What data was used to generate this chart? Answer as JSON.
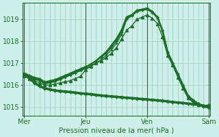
{
  "bg_color": "#cff0e8",
  "grid_color": "#99ccbb",
  "line_color": "#1a6e2a",
  "xlabel": "Pression niveau de la mer( hPa )",
  "xlabel_color": "#1a6e2a",
  "xtick_labels": [
    "Mer",
    "Jeu",
    "Ven",
    "Sam"
  ],
  "xtick_positions": [
    0,
    36,
    72,
    108
  ],
  "yticks": [
    1015,
    1016,
    1017,
    1018,
    1019
  ],
  "ylim": [
    1014.6,
    1019.75
  ],
  "xlim": [
    -1,
    109
  ],
  "lines": [
    {
      "x": [
        0,
        3,
        6,
        9,
        12,
        15,
        18,
        21,
        24,
        27,
        30,
        33,
        36,
        39,
        42,
        45,
        48,
        51,
        54,
        57,
        60,
        63,
        66,
        69,
        72,
        75,
        78,
        81,
        84,
        87,
        90,
        93,
        96,
        99,
        102,
        105,
        108
      ],
      "y": [
        1016.5,
        1016.4,
        1016.3,
        1016.25,
        1016.1,
        1016.15,
        1016.2,
        1016.3,
        1016.4,
        1016.5,
        1016.6,
        1016.7,
        1016.8,
        1016.95,
        1017.1,
        1017.3,
        1017.5,
        1017.8,
        1018.1,
        1018.5,
        1019.1,
        1019.2,
        1019.4,
        1019.45,
        1019.5,
        1019.35,
        1019.1,
        1018.5,
        1017.5,
        1017.0,
        1016.5,
        1016.0,
        1015.5,
        1015.3,
        1015.15,
        1015.05,
        1015.0
      ],
      "lw": 1.8,
      "marker": "+",
      "ms": 3.5
    },
    {
      "x": [
        0,
        3,
        6,
        9,
        12,
        15,
        18,
        21,
        24,
        27,
        30,
        33,
        36,
        39,
        42,
        45,
        48,
        51,
        54,
        57,
        60,
        63,
        66,
        69,
        72,
        75,
        78,
        81,
        84,
        87,
        90,
        93,
        96,
        99,
        102,
        105,
        108
      ],
      "y": [
        1016.45,
        1016.35,
        1016.25,
        1016.2,
        1016.05,
        1016.1,
        1016.15,
        1016.25,
        1016.35,
        1016.45,
        1016.55,
        1016.65,
        1016.75,
        1016.85,
        1017.0,
        1017.15,
        1017.35,
        1017.6,
        1017.9,
        1018.3,
        1019.0,
        1019.15,
        1019.35,
        1019.4,
        1019.45,
        1019.3,
        1019.05,
        1018.45,
        1017.4,
        1016.95,
        1016.45,
        1015.95,
        1015.45,
        1015.25,
        1015.1,
        1015.0,
        1014.95
      ],
      "lw": 1.0,
      "marker": "+",
      "ms": 3.0
    },
    {
      "x": [
        0,
        3,
        6,
        9,
        12,
        15,
        18,
        21,
        24,
        27,
        30,
        33,
        36,
        39,
        42,
        45,
        48,
        51,
        54,
        57,
        60,
        63,
        66,
        69,
        72,
        75,
        78,
        81,
        84,
        87,
        90,
        93,
        96,
        99,
        102,
        105,
        108
      ],
      "y": [
        1016.55,
        1016.45,
        1016.35,
        1016.3,
        1016.15,
        1016.2,
        1016.25,
        1016.35,
        1016.45,
        1016.55,
        1016.65,
        1016.75,
        1016.85,
        1016.95,
        1017.1,
        1017.25,
        1017.45,
        1017.7,
        1018.0,
        1018.4,
        1019.05,
        1019.2,
        1019.4,
        1019.45,
        1019.5,
        1019.35,
        1019.1,
        1018.5,
        1017.5,
        1017.0,
        1016.5,
        1016.0,
        1015.5,
        1015.3,
        1015.15,
        1015.05,
        1015.0
      ],
      "lw": 1.0,
      "marker": "+",
      "ms": 3.0
    },
    {
      "x": [
        0,
        3,
        6,
        9,
        12,
        15,
        18,
        21,
        24,
        27,
        30,
        33,
        36,
        39,
        42,
        45,
        48,
        51,
        54,
        57,
        60,
        63,
        66,
        69,
        72,
        75,
        78,
        81,
        84,
        87,
        90,
        93,
        96,
        99,
        102,
        105,
        108
      ],
      "y": [
        1016.4,
        1016.3,
        1016.2,
        1016.1,
        1016.0,
        1016.0,
        1016.05,
        1016.1,
        1016.15,
        1016.2,
        1016.3,
        1016.4,
        1016.7,
        1016.85,
        1017.0,
        1017.1,
        1017.25,
        1017.45,
        1017.7,
        1018.1,
        1018.5,
        1018.7,
        1019.0,
        1019.1,
        1019.2,
        1019.05,
        1018.8,
        1018.2,
        1017.35,
        1016.9,
        1016.35,
        1015.85,
        1015.4,
        1015.2,
        1015.1,
        1015.05,
        1015.1
      ],
      "lw": 1.0,
      "marker": "^",
      "ms": 3.0
    },
    {
      "x": [
        0,
        3,
        6,
        9,
        12,
        15,
        18,
        21,
        24,
        27,
        30,
        33,
        36,
        39,
        42,
        45,
        48,
        51,
        54,
        57,
        60,
        63,
        66,
        69,
        72,
        75,
        78,
        81,
        84,
        87,
        90,
        93,
        96,
        99,
        102,
        105,
        108
      ],
      "y": [
        1016.5,
        1016.3,
        1016.1,
        1015.95,
        1015.85,
        1015.8,
        1015.75,
        1015.72,
        1015.7,
        1015.68,
        1015.65,
        1015.62,
        1015.6,
        1015.58,
        1015.55,
        1015.52,
        1015.5,
        1015.48,
        1015.46,
        1015.44,
        1015.42,
        1015.4,
        1015.38,
        1015.36,
        1015.34,
        1015.32,
        1015.3,
        1015.28,
        1015.25,
        1015.22,
        1015.2,
        1015.18,
        1015.15,
        1015.12,
        1015.1,
        1015.05,
        1015.0
      ],
      "lw": 2.5,
      "marker": "+",
      "ms": 3.0
    },
    {
      "x": [
        0,
        3,
        6,
        9,
        12,
        15,
        18,
        21,
        24,
        27,
        30,
        33,
        36,
        39,
        42,
        45,
        48,
        51,
        54,
        57,
        60,
        63,
        66,
        69,
        72,
        75,
        78,
        81,
        84,
        87,
        90,
        93,
        96,
        99,
        102,
        105,
        108
      ],
      "y": [
        1016.52,
        1016.32,
        1016.12,
        1015.97,
        1015.87,
        1015.82,
        1015.77,
        1015.74,
        1015.72,
        1015.7,
        1015.67,
        1015.64,
        1015.62,
        1015.6,
        1015.57,
        1015.54,
        1015.52,
        1015.5,
        1015.48,
        1015.46,
        1015.44,
        1015.42,
        1015.4,
        1015.38,
        1015.36,
        1015.34,
        1015.32,
        1015.3,
        1015.27,
        1015.24,
        1015.22,
        1015.2,
        1015.17,
        1015.14,
        1015.12,
        1015.07,
        1015.02
      ],
      "lw": 1.0,
      "marker": "+",
      "ms": 3.0
    },
    {
      "x": [
        0,
        3,
        6,
        9,
        12,
        15,
        18,
        21,
        24,
        27,
        30,
        33,
        36,
        39,
        42,
        45,
        48,
        51,
        54,
        57,
        60,
        63,
        66,
        69,
        72,
        75,
        78,
        81,
        84,
        87,
        90,
        93,
        96,
        99,
        102,
        105,
        108
      ],
      "y": [
        1016.48,
        1016.28,
        1016.08,
        1015.93,
        1015.83,
        1015.78,
        1015.73,
        1015.7,
        1015.68,
        1015.66,
        1015.63,
        1015.6,
        1015.58,
        1015.56,
        1015.53,
        1015.5,
        1015.48,
        1015.46,
        1015.44,
        1015.42,
        1015.4,
        1015.38,
        1015.36,
        1015.34,
        1015.32,
        1015.3,
        1015.28,
        1015.26,
        1015.23,
        1015.2,
        1015.18,
        1015.16,
        1015.13,
        1015.1,
        1015.08,
        1015.03,
        1014.98
      ],
      "lw": 1.0,
      "marker": "+",
      "ms": 3.0
    }
  ]
}
